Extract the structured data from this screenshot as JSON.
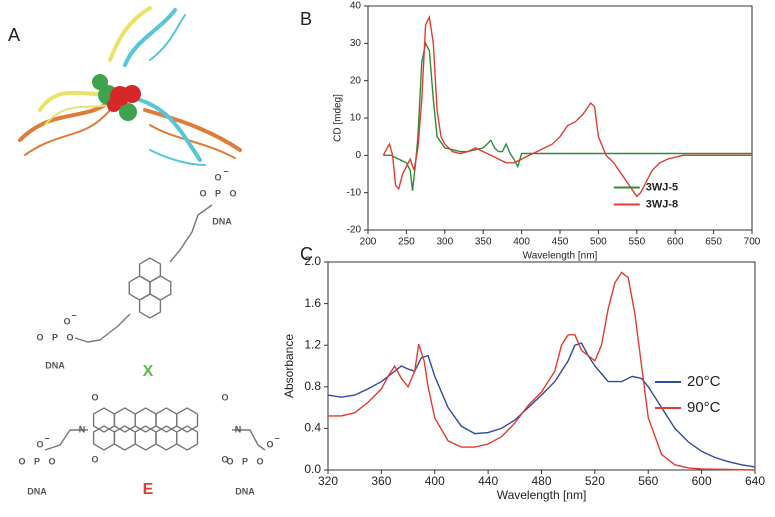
{
  "panels": [
    "A",
    "B",
    "C"
  ],
  "structures": [
    {
      "name": "X",
      "color": "#5dbb46",
      "texts": [
        "O",
        "P",
        "O",
        "O",
        "−",
        "DNA",
        "O",
        "P",
        "O",
        "O",
        "−",
        "DNA"
      ]
    },
    {
      "name": "E",
      "color": "#e03c31",
      "texts": [
        "O",
        "O",
        "O",
        "O",
        "N",
        "N",
        "O",
        "P",
        "O",
        "O",
        "−",
        "DNA",
        "O",
        "P",
        "O",
        "O",
        "−",
        "DNA"
      ]
    }
  ],
  "chart_data": [
    {
      "type": "line",
      "xlabel": "Wavelength [nm]",
      "ylabel": "CD [mdeg]",
      "xlim": [
        200,
        700
      ],
      "ylim": [
        -20,
        40
      ],
      "xticks": [
        200,
        250,
        300,
        350,
        400,
        450,
        500,
        550,
        600,
        650,
        700
      ],
      "yticks": [
        -20,
        -10,
        0,
        10,
        20,
        30,
        40
      ],
      "legend": "right",
      "series": [
        {
          "name": "3WJ-5",
          "color": "#2e8b3a",
          "x": [
            220,
            230,
            240,
            250,
            255,
            258,
            262,
            265,
            270,
            275,
            280,
            285,
            290,
            300,
            310,
            320,
            330,
            340,
            350,
            360,
            365,
            370,
            375,
            380,
            385,
            390,
            395,
            400,
            450,
            500,
            550,
            600,
            650,
            700
          ],
          "values": [
            0,
            0,
            -1,
            -2,
            -4,
            -9.5,
            -2,
            5,
            25,
            30,
            28,
            15,
            5,
            2,
            1.5,
            1,
            1,
            1.5,
            2,
            4,
            2,
            1,
            1,
            3,
            0.5,
            -1,
            -3,
            0.5,
            0.5,
            0.5,
            0.5,
            0.5,
            0.5,
            0.5
          ]
        },
        {
          "name": "3WJ-8",
          "color": "#e03c31",
          "x": [
            220,
            225,
            228,
            232,
            236,
            240,
            245,
            250,
            255,
            260,
            265,
            270,
            275,
            280,
            285,
            290,
            295,
            300,
            310,
            320,
            330,
            340,
            350,
            360,
            370,
            380,
            390,
            400,
            410,
            420,
            430,
            440,
            450,
            460,
            470,
            480,
            490,
            495,
            500,
            510,
            520,
            530,
            540,
            550,
            555,
            560,
            570,
            580,
            590,
            600,
            610,
            650,
            700
          ],
          "values": [
            0,
            2,
            3,
            0,
            -8,
            -9,
            -5,
            -3,
            -1,
            -4,
            2,
            15,
            35,
            37,
            30,
            12,
            5,
            3,
            1,
            0.5,
            1,
            2,
            1,
            0,
            -1,
            -2,
            -2,
            -1,
            0,
            1,
            2,
            3,
            5,
            8,
            9,
            11,
            14,
            13,
            5,
            0,
            -2,
            -5,
            -8,
            -11,
            -10,
            -8,
            -4,
            -2,
            -1,
            -0.5,
            0,
            0,
            0
          ]
        }
      ]
    },
    {
      "type": "line",
      "xlabel": "Wavelength [nm]",
      "ylabel": "Absorbance",
      "xlim": [
        320,
        640
      ],
      "ylim": [
        0,
        2
      ],
      "xticks": [
        320,
        360,
        400,
        440,
        480,
        520,
        560,
        600,
        640
      ],
      "yticks": [
        {
          "value": 0,
          "label": "0.0"
        },
        0.4,
        0.8,
        1.2,
        1.6,
        {
          "value": 2,
          "label": "2.0"
        }
      ],
      "legend": "lower right",
      "series": [
        {
          "name": "20°C",
          "color": "#2f4b9e",
          "x": [
            320,
            330,
            340,
            350,
            360,
            370,
            375,
            380,
            385,
            390,
            395,
            400,
            410,
            420,
            430,
            440,
            450,
            460,
            470,
            480,
            490,
            500,
            505,
            510,
            515,
            520,
            530,
            540,
            548,
            555,
            560,
            570,
            580,
            590,
            600,
            610,
            620,
            630,
            640
          ],
          "values": [
            0.72,
            0.7,
            0.72,
            0.78,
            0.85,
            0.95,
            1.0,
            0.97,
            0.95,
            1.08,
            1.1,
            0.9,
            0.6,
            0.42,
            0.35,
            0.36,
            0.4,
            0.48,
            0.6,
            0.72,
            0.85,
            1.05,
            1.2,
            1.22,
            1.1,
            1.0,
            0.85,
            0.85,
            0.9,
            0.88,
            0.8,
            0.6,
            0.4,
            0.27,
            0.18,
            0.12,
            0.08,
            0.05,
            0.03
          ]
        },
        {
          "name": "90°C",
          "color": "#e03c31",
          "x": [
            320,
            330,
            340,
            350,
            360,
            365,
            370,
            375,
            380,
            385,
            388,
            392,
            395,
            400,
            410,
            420,
            430,
            440,
            450,
            460,
            470,
            480,
            490,
            495,
            500,
            505,
            510,
            520,
            525,
            530,
            535,
            540,
            545,
            550,
            555,
            560,
            570,
            580,
            590,
            600,
            640
          ],
          "values": [
            0.52,
            0.52,
            0.55,
            0.65,
            0.78,
            0.9,
            1.0,
            0.88,
            0.8,
            0.95,
            1.21,
            1.05,
            0.8,
            0.5,
            0.28,
            0.22,
            0.22,
            0.25,
            0.32,
            0.45,
            0.62,
            0.75,
            0.95,
            1.2,
            1.3,
            1.3,
            1.15,
            1.05,
            1.2,
            1.55,
            1.8,
            1.9,
            1.85,
            1.5,
            1.0,
            0.5,
            0.15,
            0.05,
            0.02,
            0.01,
            0
          ]
        }
      ]
    }
  ]
}
